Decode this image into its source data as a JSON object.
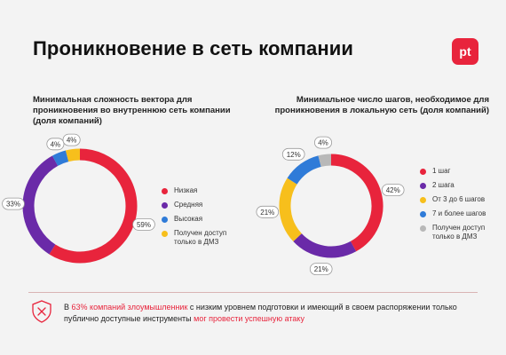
{
  "page": {
    "title": "Проникновение в сеть компании",
    "logo": "pt",
    "footer": {
      "icon": "shield-x-icon",
      "t1": "В ",
      "t2": "63% компаний злоумышленник",
      "t3": " с низким уровнем подготовки и имеющий в своем распоряжении только публично доступные инструменты ",
      "t4": "мог провести успешную атаку"
    }
  },
  "colors": {
    "red": "#e8243c",
    "purple": "#6a2aa8",
    "blue": "#2f7bd8",
    "yellow": "#f7bf1c",
    "gray": "#b8b8b8",
    "accent": "#e8243c"
  },
  "chart_data": [
    {
      "type": "pie",
      "title": "Минимальная сложность вектора для проникновения во внутреннюю сеть компании (доля компаний)",
      "categories": [
        "Низкая",
        "Средняя",
        "Высокая",
        "Получен доступ только в ДМЗ"
      ],
      "values": [
        59,
        33,
        4,
        4
      ],
      "labels": [
        "59%",
        "33%",
        "4%",
        "4%"
      ],
      "colors": [
        "#e8243c",
        "#6a2aa8",
        "#2f7bd8",
        "#f7bf1c"
      ],
      "legend": "right"
    },
    {
      "type": "pie",
      "title": "Минимальное число шагов, необходимое для проникновения в локальную сеть (доля компаний)",
      "categories": [
        "1 шаг",
        "2 шага",
        "От 3 до 6 шагов",
        "7 и более шагов",
        "Получен доступ только в ДМЗ"
      ],
      "values": [
        42,
        21,
        21,
        12,
        4
      ],
      "labels": [
        "42%",
        "21%",
        "21%",
        "12%",
        "4%"
      ],
      "colors": [
        "#e8243c",
        "#6a2aa8",
        "#f7bf1c",
        "#2f7bd8",
        "#b8b8b8"
      ],
      "legend": "right"
    }
  ]
}
